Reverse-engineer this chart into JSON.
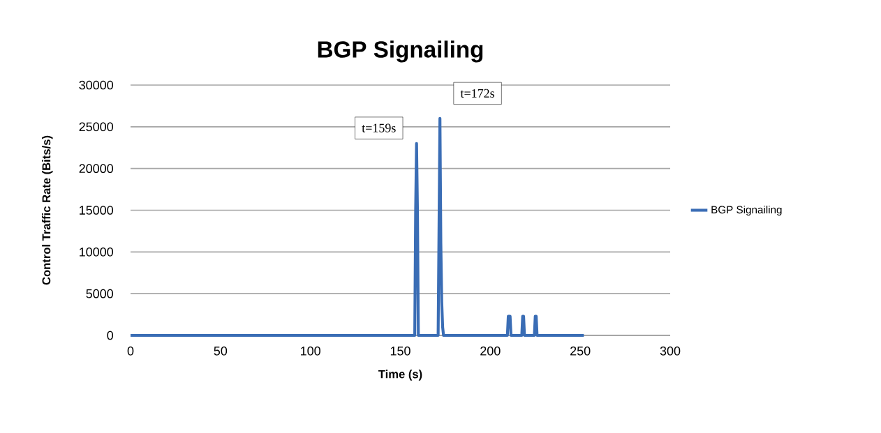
{
  "chart_data": {
    "type": "line",
    "title": "BGP Signailing",
    "xlabel": "Time (s)",
    "ylabel": "Control Traffic Rate (Bits/s)",
    "series": [
      {
        "name": "BGP Signailing",
        "color": "#3a6db5",
        "x": [
          0,
          158,
          158.5,
          159,
          159.5,
          160,
          171,
          171.5,
          172,
          172.5,
          173,
          173.5,
          174,
          209.5,
          210,
          211,
          211.5,
          217.5,
          218,
          218.5,
          219,
          224.5,
          225,
          225.5,
          226,
          252
        ],
        "values": [
          0,
          0,
          15000,
          23000,
          15000,
          0,
          0,
          13000,
          26000,
          11000,
          4000,
          1000,
          0,
          0,
          2300,
          2300,
          0,
          0,
          2300,
          2300,
          0,
          0,
          2300,
          2300,
          0,
          0
        ]
      }
    ],
    "xlim": [
      0,
      300
    ],
    "ylim": [
      0,
      30000
    ],
    "xticks": [
      0,
      50,
      100,
      150,
      200,
      250,
      300
    ],
    "yticks": [
      0,
      5000,
      10000,
      15000,
      20000,
      25000,
      30000
    ],
    "grid": "y",
    "legend": "right",
    "marker": "none",
    "line_style": "solid",
    "annotations": [
      {
        "text": "t=159s",
        "x": 159,
        "y": 23000
      },
      {
        "text": "t=172s",
        "x": 172,
        "y": 26000
      }
    ]
  }
}
